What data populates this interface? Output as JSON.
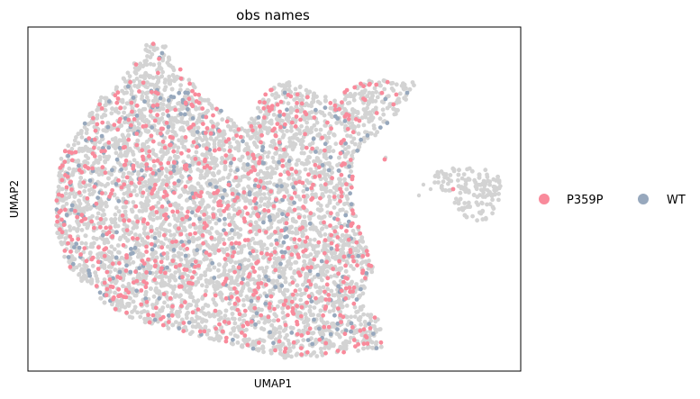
{
  "chart_data": {
    "type": "scatter",
    "title": "obs names",
    "xlabel": "UMAP1",
    "ylabel": "UMAP2",
    "xticks": [],
    "yticks": [],
    "legend_position": "right",
    "background_color": "#d3d3d3",
    "series": [
      {
        "name": "P359P",
        "color": "#f98a9b",
        "approx_count": 800
      },
      {
        "name": "WT",
        "color": "#97a8bd",
        "approx_count": 300
      }
    ]
  }
}
